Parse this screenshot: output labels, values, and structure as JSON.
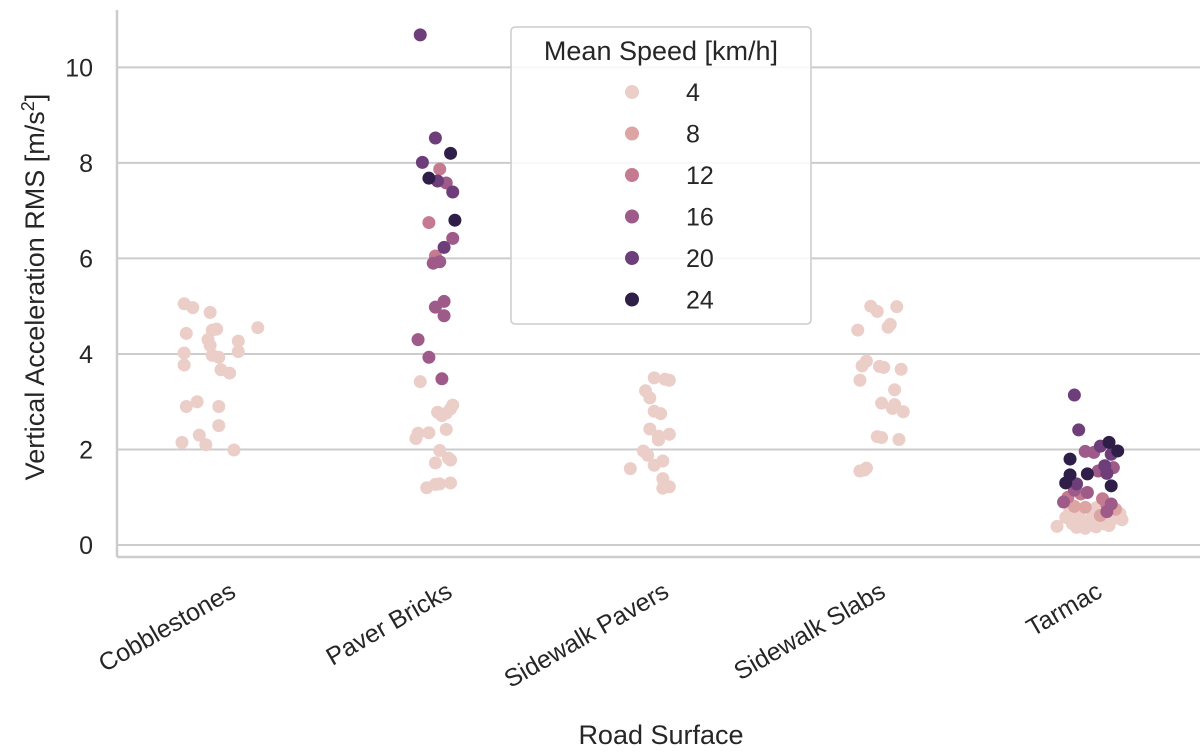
{
  "chart_data": {
    "type": "scatter",
    "xlabel": "Road Surface",
    "ylabel_main": "Vertical Acceleration RMS [m/s",
    "ylabel_sup": "2",
    "ylabel_close": "]",
    "ylim": [
      -0.25,
      11.2
    ],
    "yticks": [
      0,
      2,
      4,
      6,
      8,
      10
    ],
    "categories": [
      "Cobblestones",
      "Paver Bricks",
      "Sidewalk Pavers",
      "Sidewalk Slabs",
      "Tarmac"
    ],
    "grid": "horizontal",
    "legend": {
      "title": "Mean Speed [km/h]",
      "placement": "top-center",
      "entries": [
        "4",
        "8",
        "12",
        "16",
        "20",
        "24"
      ],
      "colors": [
        "#ebcec8",
        "#dca4a3",
        "#c47b91",
        "#9e5a89",
        "#6e3e7a",
        "#2f1f48"
      ]
    },
    "points": [
      {
        "cat": 0,
        "dx": -0.19,
        "y": 5.05,
        "speed": 4
      },
      {
        "cat": 0,
        "dx": -0.15,
        "y": 4.97,
        "speed": 4
      },
      {
        "cat": 0,
        "dx": -0.07,
        "y": 4.87,
        "speed": 4
      },
      {
        "cat": 0,
        "dx": 0.15,
        "y": 4.55,
        "speed": 4
      },
      {
        "cat": 0,
        "dx": -0.06,
        "y": 4.5,
        "speed": 4
      },
      {
        "cat": 0,
        "dx": -0.04,
        "y": 4.52,
        "speed": 4
      },
      {
        "cat": 0,
        "dx": -0.18,
        "y": 4.43,
        "speed": 4
      },
      {
        "cat": 0,
        "dx": -0.08,
        "y": 4.3,
        "speed": 4
      },
      {
        "cat": 0,
        "dx": 0.06,
        "y": 4.27,
        "speed": 4
      },
      {
        "cat": 0,
        "dx": -0.07,
        "y": 4.18,
        "speed": 4
      },
      {
        "cat": 0,
        "dx": 0.06,
        "y": 4.05,
        "speed": 4
      },
      {
        "cat": 0,
        "dx": -0.19,
        "y": 4.02,
        "speed": 4
      },
      {
        "cat": 0,
        "dx": -0.06,
        "y": 3.97,
        "speed": 4
      },
      {
        "cat": 0,
        "dx": -0.03,
        "y": 3.93,
        "speed": 4
      },
      {
        "cat": 0,
        "dx": -0.19,
        "y": 3.77,
        "speed": 4
      },
      {
        "cat": 0,
        "dx": -0.02,
        "y": 3.67,
        "speed": 4
      },
      {
        "cat": 0,
        "dx": 0.02,
        "y": 3.6,
        "speed": 4
      },
      {
        "cat": 0,
        "dx": -0.13,
        "y": 3.0,
        "speed": 4
      },
      {
        "cat": 0,
        "dx": -0.18,
        "y": 2.9,
        "speed": 4
      },
      {
        "cat": 0,
        "dx": -0.03,
        "y": 2.9,
        "speed": 4
      },
      {
        "cat": 0,
        "dx": -0.03,
        "y": 2.5,
        "speed": 4
      },
      {
        "cat": 0,
        "dx": -0.12,
        "y": 2.3,
        "speed": 4
      },
      {
        "cat": 0,
        "dx": -0.2,
        "y": 2.15,
        "speed": 4
      },
      {
        "cat": 0,
        "dx": -0.09,
        "y": 2.1,
        "speed": 4
      },
      {
        "cat": 0,
        "dx": 0.04,
        "y": 1.99,
        "speed": 4
      },
      {
        "cat": 1,
        "dx": -0.1,
        "y": 10.68,
        "speed": 20
      },
      {
        "cat": 1,
        "dx": -0.03,
        "y": 8.52,
        "speed": 20
      },
      {
        "cat": 1,
        "dx": 0.04,
        "y": 8.2,
        "speed": 24
      },
      {
        "cat": 1,
        "dx": -0.09,
        "y": 8.01,
        "speed": 20
      },
      {
        "cat": 1,
        "dx": -0.01,
        "y": 7.87,
        "speed": 12
      },
      {
        "cat": 1,
        "dx": -0.06,
        "y": 7.68,
        "speed": 24
      },
      {
        "cat": 1,
        "dx": -0.02,
        "y": 7.62,
        "speed": 20
      },
      {
        "cat": 1,
        "dx": 0.02,
        "y": 7.58,
        "speed": 16
      },
      {
        "cat": 1,
        "dx": 0.05,
        "y": 7.39,
        "speed": 20
      },
      {
        "cat": 1,
        "dx": 0.06,
        "y": 6.8,
        "speed": 24
      },
      {
        "cat": 1,
        "dx": -0.06,
        "y": 6.75,
        "speed": 12
      },
      {
        "cat": 1,
        "dx": 0.05,
        "y": 6.42,
        "speed": 16
      },
      {
        "cat": 1,
        "dx": 0.01,
        "y": 6.23,
        "speed": 20
      },
      {
        "cat": 1,
        "dx": -0.03,
        "y": 6.05,
        "speed": 12
      },
      {
        "cat": 1,
        "dx": -0.01,
        "y": 5.93,
        "speed": 16
      },
      {
        "cat": 1,
        "dx": -0.04,
        "y": 5.9,
        "speed": 16
      },
      {
        "cat": 1,
        "dx": 0.01,
        "y": 5.1,
        "speed": 16
      },
      {
        "cat": 1,
        "dx": -0.03,
        "y": 4.98,
        "speed": 16
      },
      {
        "cat": 1,
        "dx": 0.01,
        "y": 4.8,
        "speed": 16
      },
      {
        "cat": 1,
        "dx": -0.11,
        "y": 4.3,
        "speed": 16
      },
      {
        "cat": 1,
        "dx": -0.06,
        "y": 3.93,
        "speed": 16
      },
      {
        "cat": 1,
        "dx": 0.0,
        "y": 3.48,
        "speed": 16
      },
      {
        "cat": 1,
        "dx": -0.1,
        "y": 3.42,
        "speed": 4
      },
      {
        "cat": 1,
        "dx": 0.05,
        "y": 2.93,
        "speed": 4
      },
      {
        "cat": 1,
        "dx": 0.04,
        "y": 2.85,
        "speed": 4
      },
      {
        "cat": 1,
        "dx": -0.02,
        "y": 2.78,
        "speed": 4
      },
      {
        "cat": 1,
        "dx": 0.02,
        "y": 2.76,
        "speed": 4
      },
      {
        "cat": 1,
        "dx": 0.0,
        "y": 2.71,
        "speed": 4
      },
      {
        "cat": 1,
        "dx": 0.02,
        "y": 2.42,
        "speed": 4
      },
      {
        "cat": 1,
        "dx": -0.11,
        "y": 2.34,
        "speed": 4
      },
      {
        "cat": 1,
        "dx": -0.06,
        "y": 2.35,
        "speed": 4
      },
      {
        "cat": 1,
        "dx": -0.12,
        "y": 2.23,
        "speed": 4
      },
      {
        "cat": 1,
        "dx": -0.01,
        "y": 1.98,
        "speed": 4
      },
      {
        "cat": 1,
        "dx": 0.03,
        "y": 1.82,
        "speed": 4
      },
      {
        "cat": 1,
        "dx": 0.04,
        "y": 1.78,
        "speed": 4
      },
      {
        "cat": 1,
        "dx": -0.03,
        "y": 1.72,
        "speed": 4
      },
      {
        "cat": 1,
        "dx": 0.04,
        "y": 1.3,
        "speed": 4
      },
      {
        "cat": 1,
        "dx": -0.03,
        "y": 1.27,
        "speed": 4
      },
      {
        "cat": 1,
        "dx": -0.01,
        "y": 1.28,
        "speed": 4
      },
      {
        "cat": 1,
        "dx": -0.07,
        "y": 1.2,
        "speed": 4
      },
      {
        "cat": 2,
        "dx": -0.02,
        "y": 3.5,
        "speed": 4
      },
      {
        "cat": 2,
        "dx": 0.03,
        "y": 3.47,
        "speed": 4
      },
      {
        "cat": 2,
        "dx": 0.05,
        "y": 3.45,
        "speed": 4
      },
      {
        "cat": 2,
        "dx": -0.06,
        "y": 3.23,
        "speed": 4
      },
      {
        "cat": 2,
        "dx": -0.04,
        "y": 3.08,
        "speed": 4
      },
      {
        "cat": 2,
        "dx": -0.02,
        "y": 2.8,
        "speed": 4
      },
      {
        "cat": 2,
        "dx": 0.01,
        "y": 2.75,
        "speed": 4
      },
      {
        "cat": 2,
        "dx": -0.04,
        "y": 2.43,
        "speed": 4
      },
      {
        "cat": 2,
        "dx": 0.05,
        "y": 2.32,
        "speed": 4
      },
      {
        "cat": 2,
        "dx": 0.0,
        "y": 2.28,
        "speed": 4
      },
      {
        "cat": 2,
        "dx": 0.0,
        "y": 2.2,
        "speed": 4
      },
      {
        "cat": 2,
        "dx": -0.07,
        "y": 1.97,
        "speed": 4
      },
      {
        "cat": 2,
        "dx": -0.05,
        "y": 1.88,
        "speed": 4
      },
      {
        "cat": 2,
        "dx": 0.02,
        "y": 1.76,
        "speed": 4
      },
      {
        "cat": 2,
        "dx": -0.02,
        "y": 1.67,
        "speed": 4
      },
      {
        "cat": 2,
        "dx": -0.13,
        "y": 1.6,
        "speed": 4
      },
      {
        "cat": 2,
        "dx": 0.02,
        "y": 1.39,
        "speed": 4
      },
      {
        "cat": 2,
        "dx": 0.05,
        "y": 1.22,
        "speed": 4
      },
      {
        "cat": 2,
        "dx": 0.02,
        "y": 1.19,
        "speed": 4
      },
      {
        "cat": 3,
        "dx": -0.02,
        "y": 5.0,
        "speed": 4
      },
      {
        "cat": 3,
        "dx": 0.1,
        "y": 4.99,
        "speed": 4
      },
      {
        "cat": 3,
        "dx": 0.01,
        "y": 4.89,
        "speed": 4
      },
      {
        "cat": 3,
        "dx": 0.07,
        "y": 4.62,
        "speed": 4
      },
      {
        "cat": 3,
        "dx": 0.06,
        "y": 4.56,
        "speed": 4
      },
      {
        "cat": 3,
        "dx": -0.08,
        "y": 4.5,
        "speed": 4
      },
      {
        "cat": 3,
        "dx": -0.04,
        "y": 3.85,
        "speed": 4
      },
      {
        "cat": 3,
        "dx": -0.06,
        "y": 3.75,
        "speed": 4
      },
      {
        "cat": 3,
        "dx": 0.02,
        "y": 3.74,
        "speed": 4
      },
      {
        "cat": 3,
        "dx": 0.04,
        "y": 3.72,
        "speed": 4
      },
      {
        "cat": 3,
        "dx": 0.12,
        "y": 3.68,
        "speed": 4
      },
      {
        "cat": 3,
        "dx": -0.07,
        "y": 3.45,
        "speed": 4
      },
      {
        "cat": 3,
        "dx": 0.09,
        "y": 3.25,
        "speed": 4
      },
      {
        "cat": 3,
        "dx": 0.03,
        "y": 2.97,
        "speed": 4
      },
      {
        "cat": 3,
        "dx": 0.09,
        "y": 2.94,
        "speed": 4
      },
      {
        "cat": 3,
        "dx": 0.08,
        "y": 2.86,
        "speed": 4
      },
      {
        "cat": 3,
        "dx": 0.13,
        "y": 2.79,
        "speed": 4
      },
      {
        "cat": 3,
        "dx": 0.01,
        "y": 2.27,
        "speed": 4
      },
      {
        "cat": 3,
        "dx": 0.03,
        "y": 2.25,
        "speed": 4
      },
      {
        "cat": 3,
        "dx": 0.11,
        "y": 2.21,
        "speed": 4
      },
      {
        "cat": 3,
        "dx": -0.04,
        "y": 1.61,
        "speed": 4
      },
      {
        "cat": 3,
        "dx": -0.07,
        "y": 1.55,
        "speed": 4
      },
      {
        "cat": 3,
        "dx": -0.05,
        "y": 1.57,
        "speed": 4
      },
      {
        "cat": 4,
        "dx": -0.08,
        "y": 3.14,
        "speed": 20
      },
      {
        "cat": 4,
        "dx": -0.06,
        "y": 2.41,
        "speed": 20
      },
      {
        "cat": 4,
        "dx": 0.08,
        "y": 2.15,
        "speed": 24
      },
      {
        "cat": 4,
        "dx": 0.04,
        "y": 2.07,
        "speed": 20
      },
      {
        "cat": 4,
        "dx": 0.12,
        "y": 1.97,
        "speed": 24
      },
      {
        "cat": 4,
        "dx": -0.03,
        "y": 1.96,
        "speed": 16
      },
      {
        "cat": 4,
        "dx": 0.09,
        "y": 1.9,
        "speed": 20
      },
      {
        "cat": 4,
        "dx": 0.01,
        "y": 1.94,
        "speed": 16
      },
      {
        "cat": 4,
        "dx": -0.1,
        "y": 1.8,
        "speed": 24
      },
      {
        "cat": 4,
        "dx": 0.06,
        "y": 1.66,
        "speed": 20
      },
      {
        "cat": 4,
        "dx": 0.1,
        "y": 1.62,
        "speed": 16
      },
      {
        "cat": 4,
        "dx": 0.03,
        "y": 1.55,
        "speed": 16
      },
      {
        "cat": 4,
        "dx": 0.07,
        "y": 1.5,
        "speed": 20
      },
      {
        "cat": 4,
        "dx": -0.02,
        "y": 1.49,
        "speed": 24
      },
      {
        "cat": 4,
        "dx": -0.1,
        "y": 1.47,
        "speed": 24
      },
      {
        "cat": 4,
        "dx": -0.12,
        "y": 1.3,
        "speed": 24
      },
      {
        "cat": 4,
        "dx": -0.07,
        "y": 1.28,
        "speed": 20
      },
      {
        "cat": 4,
        "dx": 0.09,
        "y": 1.24,
        "speed": 24
      },
      {
        "cat": 4,
        "dx": -0.08,
        "y": 1.15,
        "speed": 16
      },
      {
        "cat": 4,
        "dx": -0.02,
        "y": 1.1,
        "speed": 16
      },
      {
        "cat": 4,
        "dx": -0.05,
        "y": 1.07,
        "speed": 12
      },
      {
        "cat": 4,
        "dx": -0.11,
        "y": 1.0,
        "speed": 12
      },
      {
        "cat": 4,
        "dx": 0.05,
        "y": 0.97,
        "speed": 12
      },
      {
        "cat": 4,
        "dx": -0.13,
        "y": 0.9,
        "speed": 16
      },
      {
        "cat": 4,
        "dx": 0.09,
        "y": 0.86,
        "speed": 16
      },
      {
        "cat": 4,
        "dx": 0.07,
        "y": 0.84,
        "speed": 12
      },
      {
        "cat": 4,
        "dx": -0.08,
        "y": 0.81,
        "speed": 8
      },
      {
        "cat": 4,
        "dx": -0.03,
        "y": 0.79,
        "speed": 8
      },
      {
        "cat": 4,
        "dx": 0.02,
        "y": 0.78,
        "speed": 4
      },
      {
        "cat": 4,
        "dx": 0.11,
        "y": 0.75,
        "speed": 8
      },
      {
        "cat": 4,
        "dx": -0.1,
        "y": 0.72,
        "speed": 4
      },
      {
        "cat": 4,
        "dx": 0.07,
        "y": 0.7,
        "speed": 16
      },
      {
        "cat": 4,
        "dx": 0.13,
        "y": 0.66,
        "speed": 4
      },
      {
        "cat": 4,
        "dx": -0.06,
        "y": 0.64,
        "speed": 4
      },
      {
        "cat": 4,
        "dx": 0.04,
        "y": 0.62,
        "speed": 8
      },
      {
        "cat": 4,
        "dx": -0.12,
        "y": 0.58,
        "speed": 4
      },
      {
        "cat": 4,
        "dx": 0.0,
        "y": 0.57,
        "speed": 4
      },
      {
        "cat": 4,
        "dx": 0.1,
        "y": 0.55,
        "speed": 4
      },
      {
        "cat": 4,
        "dx": 0.14,
        "y": 0.53,
        "speed": 4
      },
      {
        "cat": 4,
        "dx": -0.04,
        "y": 0.5,
        "speed": 4
      },
      {
        "cat": 4,
        "dx": 0.03,
        "y": 0.47,
        "speed": 4
      },
      {
        "cat": 4,
        "dx": -0.09,
        "y": 0.45,
        "speed": 4
      },
      {
        "cat": 4,
        "dx": 0.06,
        "y": 0.44,
        "speed": 4
      },
      {
        "cat": 4,
        "dx": -0.01,
        "y": 0.42,
        "speed": 4
      },
      {
        "cat": 4,
        "dx": -0.16,
        "y": 0.39,
        "speed": 4
      },
      {
        "cat": 4,
        "dx": -0.07,
        "y": 0.37,
        "speed": 4
      },
      {
        "cat": 4,
        "dx": 0.02,
        "y": 0.38,
        "speed": 4
      },
      {
        "cat": 4,
        "dx": 0.08,
        "y": 0.41,
        "speed": 4
      },
      {
        "cat": 4,
        "dx": -0.03,
        "y": 0.35,
        "speed": 4
      }
    ]
  }
}
